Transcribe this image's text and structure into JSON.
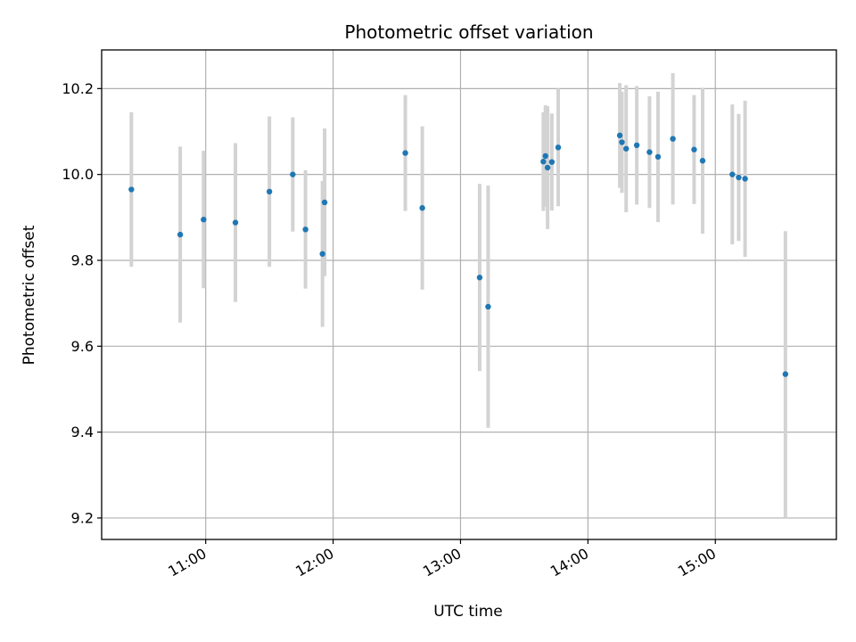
{
  "chart_data": {
    "type": "scatter",
    "title": "Photometric offset variation",
    "xlabel": "UTC time",
    "ylabel": "Photometric offset",
    "xlim": [
      "10:11",
      "15:57"
    ],
    "ylim": [
      9.15,
      10.29
    ],
    "x_ticks": [
      "11:00",
      "12:00",
      "13:00",
      "14:00",
      "15:00"
    ],
    "y_ticks": [
      9.2,
      9.4,
      9.6,
      9.8,
      10.0,
      10.2
    ],
    "grid": true,
    "marker_color": "#1f77b4",
    "errorbar_color": "#d3d3d3",
    "points": [
      {
        "x": "10:25",
        "y": 9.965,
        "yerr": 0.18
      },
      {
        "x": "10:48",
        "y": 9.86,
        "yerr": 0.205
      },
      {
        "x": "10:59",
        "y": 9.895,
        "yerr": 0.16
      },
      {
        "x": "11:14",
        "y": 9.888,
        "yerr": 0.185
      },
      {
        "x": "11:30",
        "y": 9.96,
        "yerr": 0.175
      },
      {
        "x": "11:41",
        "y": 10.0,
        "yerr": 0.133
      },
      {
        "x": "11:47",
        "y": 9.872,
        "yerr": 0.138
      },
      {
        "x": "11:55",
        "y": 9.815,
        "yerr": 0.17
      },
      {
        "x": "11:56",
        "y": 9.935,
        "yerr": 0.172
      },
      {
        "x": "12:34",
        "y": 10.05,
        "yerr": 0.135
      },
      {
        "x": "12:42",
        "y": 9.922,
        "yerr": 0.19
      },
      {
        "x": "13:09",
        "y": 9.76,
        "yerr": 0.218
      },
      {
        "x": "13:13",
        "y": 9.692,
        "yerr": 0.282
      },
      {
        "x": "13:39",
        "y": 10.03,
        "yerr": 0.115
      },
      {
        "x": "13:40",
        "y": 10.043,
        "yerr": 0.118
      },
      {
        "x": "13:41",
        "y": 10.016,
        "yerr": 0.143
      },
      {
        "x": "13:43",
        "y": 10.029,
        "yerr": 0.113
      },
      {
        "x": "13:46",
        "y": 10.063,
        "yerr": 0.137
      },
      {
        "x": "14:15",
        "y": 10.091,
        "yerr": 0.122
      },
      {
        "x": "14:16",
        "y": 10.075,
        "yerr": 0.118
      },
      {
        "x": "14:18",
        "y": 10.06,
        "yerr": 0.148
      },
      {
        "x": "14:23",
        "y": 10.068,
        "yerr": 0.138
      },
      {
        "x": "14:29",
        "y": 10.052,
        "yerr": 0.13
      },
      {
        "x": "14:33",
        "y": 10.041,
        "yerr": 0.152
      },
      {
        "x": "14:40",
        "y": 10.083,
        "yerr": 0.153
      },
      {
        "x": "14:50",
        "y": 10.058,
        "yerr": 0.127
      },
      {
        "x": "14:54",
        "y": 10.032,
        "yerr": 0.17
      },
      {
        "x": "15:08",
        "y": 10.0,
        "yerr": 0.163
      },
      {
        "x": "15:11",
        "y": 9.993,
        "yerr": 0.148
      },
      {
        "x": "15:14",
        "y": 9.99,
        "yerr": 0.182
      },
      {
        "x": "15:33",
        "y": 9.535,
        "yerr": 0.333
      }
    ]
  }
}
